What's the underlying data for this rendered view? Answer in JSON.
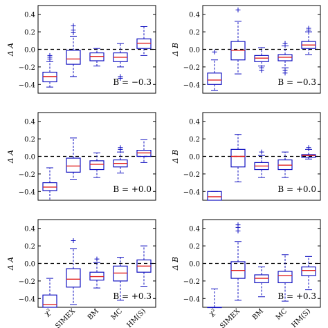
{
  "chart_data": {
    "type": "box",
    "categories": [
      "χ²",
      "SIMEX",
      "BM",
      "MC",
      "HM(S)"
    ],
    "ylim": [
      -0.5,
      0.5
    ],
    "yticks": [
      0.4,
      0.2,
      0.0,
      -0.2,
      -0.4
    ],
    "ytick_labels": [
      "0.4",
      "0.2",
      "0.0",
      "−0.2",
      "−0.4"
    ],
    "reference_line": 0.0,
    "colors": {
      "box": "#1010c0",
      "median": "#e02020",
      "axes": "#000000"
    },
    "panels": [
      {
        "id": "A-neg",
        "ylabel": "Δ A",
        "annotation": "B = −0.3",
        "boxes": [
          {
            "whislo": -0.43,
            "q1": -0.37,
            "med": -0.31,
            "q3": -0.26,
            "whishi": -0.14,
            "fliers": [
              -0.07,
              -0.09,
              -0.11
            ]
          },
          {
            "whislo": -0.31,
            "q1": -0.17,
            "med": -0.11,
            "q3": -0.01,
            "whishi": 0.15,
            "fliers": [
              0.19,
              0.22,
              0.27
            ]
          },
          {
            "whislo": -0.19,
            "q1": -0.13,
            "med": -0.08,
            "q3": -0.04,
            "whishi": 0.01,
            "fliers": []
          },
          {
            "whislo": -0.2,
            "q1": -0.14,
            "med": -0.09,
            "q3": -0.04,
            "whishi": 0.07,
            "fliers": [
              -0.31,
              -0.33
            ]
          },
          {
            "whislo": -0.07,
            "q1": 0.01,
            "med": 0.07,
            "q3": 0.12,
            "whishi": 0.26,
            "fliers": []
          }
        ]
      },
      {
        "id": "B-neg",
        "ylabel": "Δ B",
        "annotation": "B = −0.3",
        "boxes": [
          {
            "whislo": -0.47,
            "q1": -0.4,
            "med": -0.35,
            "q3": -0.27,
            "whishi": -0.12,
            "fliers": [
              -0.03
            ]
          },
          {
            "whislo": -0.28,
            "q1": -0.12,
            "med": -0.01,
            "q3": 0.09,
            "whishi": 0.32,
            "fliers": [
              0.45
            ]
          },
          {
            "whislo": -0.19,
            "q1": -0.14,
            "med": -0.1,
            "q3": -0.07,
            "whishi": 0.02,
            "fliers": [
              -0.21,
              -0.24
            ]
          },
          {
            "whislo": -0.21,
            "q1": -0.13,
            "med": -0.09,
            "q3": -0.06,
            "whishi": 0.04,
            "fliers": [
              -0.24,
              -0.27,
              0.07
            ]
          },
          {
            "whislo": -0.06,
            "q1": 0.01,
            "med": 0.05,
            "q3": 0.09,
            "whishi": 0.2,
            "fliers": [
              0.22,
              0.24
            ]
          }
        ]
      },
      {
        "id": "A-zero",
        "ylabel": "Δ A",
        "annotation": "B = +0.0",
        "boxes": [
          {
            "whislo": -0.5,
            "q1": -0.39,
            "med": -0.35,
            "q3": -0.3,
            "whishi": -0.13,
            "fliers": []
          },
          {
            "whislo": -0.26,
            "q1": -0.18,
            "med": -0.11,
            "q3": -0.02,
            "whishi": 0.21,
            "fliers": []
          },
          {
            "whislo": -0.24,
            "q1": -0.15,
            "med": -0.09,
            "q3": -0.05,
            "whishi": 0.04,
            "fliers": []
          },
          {
            "whislo": -0.19,
            "q1": -0.12,
            "med": -0.08,
            "q3": -0.04,
            "whishi": 0.05,
            "fliers": [
              0.08,
              0.1
            ]
          },
          {
            "whislo": -0.07,
            "q1": 0.0,
            "med": 0.04,
            "q3": 0.07,
            "whishi": 0.19,
            "fliers": []
          }
        ]
      },
      {
        "id": "B-zero",
        "ylabel": "Δ B",
        "annotation": "B = +0.0",
        "boxes": [
          {
            "whislo": -0.5,
            "q1": -0.5,
            "med": -0.46,
            "q3": -0.4,
            "whishi": -0.4,
            "fliers": []
          },
          {
            "whislo": -0.29,
            "q1": -0.12,
            "med": 0.0,
            "q3": 0.08,
            "whishi": 0.25,
            "fliers": []
          },
          {
            "whislo": -0.24,
            "q1": -0.15,
            "med": -0.11,
            "q3": -0.07,
            "whishi": 0.01,
            "fliers": [
              0.05
            ]
          },
          {
            "whislo": -0.24,
            "q1": -0.15,
            "med": -0.1,
            "q3": -0.04,
            "whishi": 0.05,
            "fliers": []
          },
          {
            "whislo": -0.03,
            "q1": -0.01,
            "med": 0.01,
            "q3": 0.02,
            "whishi": 0.08,
            "fliers": [
              0.1
            ]
          }
        ]
      },
      {
        "id": "A-pos",
        "ylabel": "Δ A",
        "annotation": "B = +0.3",
        "boxes": [
          {
            "whislo": -0.5,
            "q1": -0.5,
            "med": -0.47,
            "q3": -0.36,
            "whishi": -0.17,
            "fliers": []
          },
          {
            "whislo": -0.47,
            "q1": -0.27,
            "med": -0.18,
            "q3": -0.06,
            "whishi": 0.17,
            "fliers": [
              0.26
            ]
          },
          {
            "whislo": -0.28,
            "q1": -0.19,
            "med": -0.15,
            "q3": -0.1,
            "whishi": 0.01,
            "fliers": [
              0.05
            ]
          },
          {
            "whislo": -0.42,
            "q1": -0.2,
            "med": -0.11,
            "q3": -0.03,
            "whishi": 0.07,
            "fliers": []
          },
          {
            "whislo": -0.26,
            "q1": -0.1,
            "med": -0.03,
            "q3": 0.04,
            "whishi": 0.2,
            "fliers": []
          }
        ]
      },
      {
        "id": "B-pos",
        "ylabel": "Δ B",
        "annotation": "B = +0.3",
        "boxes": [
          {
            "whislo": -0.5,
            "q1": -0.5,
            "med": -0.5,
            "q3": -0.5,
            "whishi": -0.29,
            "fliers": []
          },
          {
            "whislo": -0.42,
            "q1": -0.17,
            "med": -0.08,
            "q3": 0.02,
            "whishi": 0.25,
            "fliers": [
              0.37,
              0.41,
              0.44
            ]
          },
          {
            "whislo": -0.38,
            "q1": -0.22,
            "med": -0.17,
            "q3": -0.13,
            "whishi": -0.04,
            "fliers": []
          },
          {
            "whislo": -0.43,
            "q1": -0.22,
            "med": -0.14,
            "q3": -0.09,
            "whishi": 0.1,
            "fliers": []
          },
          {
            "whislo": -0.3,
            "q1": -0.14,
            "med": -0.08,
            "q3": -0.04,
            "whishi": 0.08,
            "fliers": []
          }
        ]
      }
    ]
  }
}
